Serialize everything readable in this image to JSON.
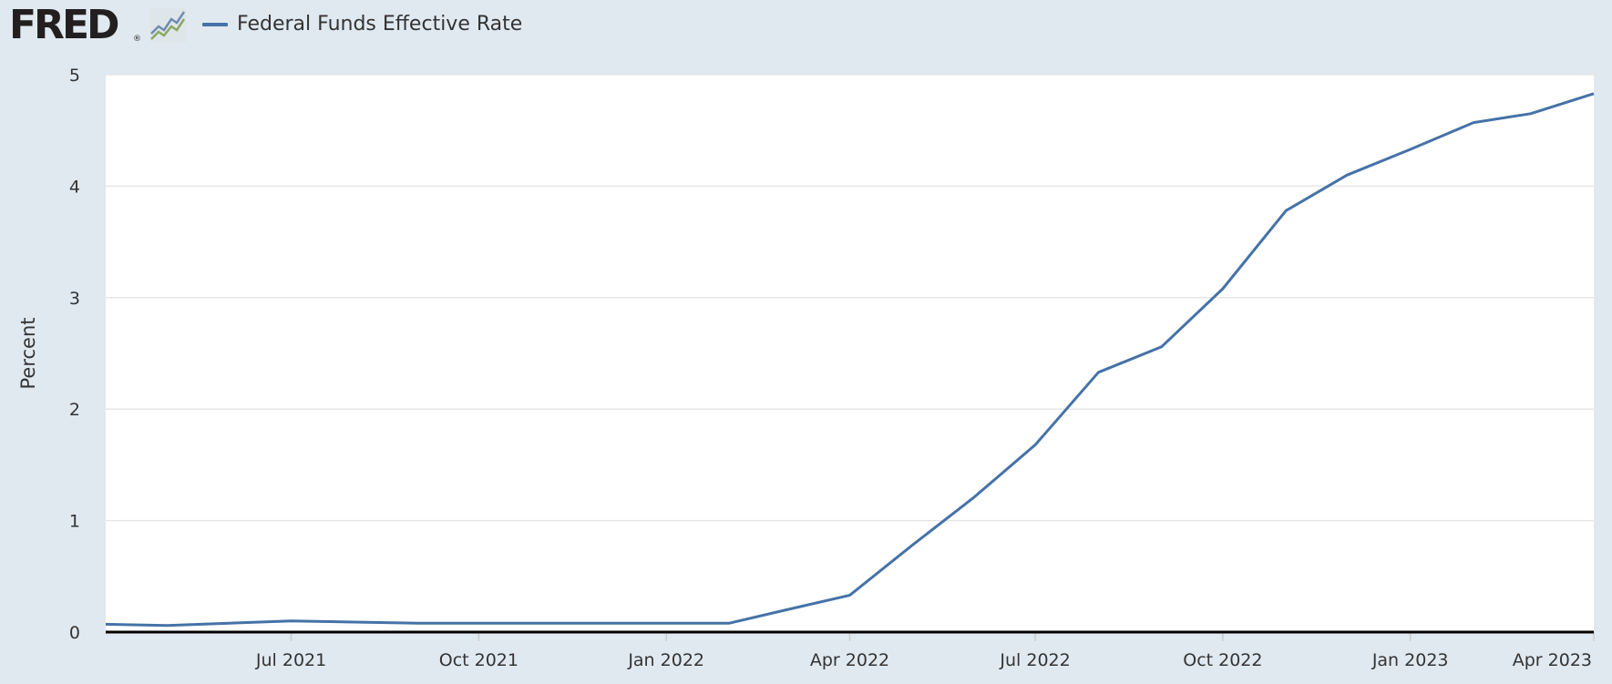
{
  "header": {
    "logo_text": "FRED",
    "logo_mark": "®",
    "logo_icon": "line-graph-icon",
    "legend_label": "Federal Funds Effective Rate",
    "series_color": "#4572a7"
  },
  "chart_data": {
    "type": "line",
    "title": "",
    "xlabel": "",
    "ylabel": "Percent",
    "ylim": [
      0,
      5
    ],
    "yticks": [
      0,
      1,
      2,
      3,
      4,
      5
    ],
    "xlim": [
      "2021-04-01",
      "2023-04-01"
    ],
    "xticks": [
      {
        "date": "2021-07-01",
        "label": "Jul 2021"
      },
      {
        "date": "2021-10-01",
        "label": "Oct 2021"
      },
      {
        "date": "2022-01-01",
        "label": "Jan 2022"
      },
      {
        "date": "2022-04-01",
        "label": "Apr 2022"
      },
      {
        "date": "2022-07-01",
        "label": "Jul 2022"
      },
      {
        "date": "2022-10-01",
        "label": "Oct 2022"
      },
      {
        "date": "2023-01-01",
        "label": "Jan 2023"
      },
      {
        "date": "2023-04-01",
        "label": "Apr 2023"
      }
    ],
    "grid": true,
    "legend_placement": "top-left",
    "series": [
      {
        "name": "Federal Funds Effective Rate",
        "color": "#4572a7",
        "points": [
          {
            "x": "2021-04-01",
            "y": 0.07
          },
          {
            "x": "2021-05-01",
            "y": 0.06
          },
          {
            "x": "2021-07-01",
            "y": 0.1
          },
          {
            "x": "2021-09-01",
            "y": 0.08
          },
          {
            "x": "2021-12-01",
            "y": 0.08
          },
          {
            "x": "2022-02-01",
            "y": 0.08
          },
          {
            "x": "2022-03-01",
            "y": 0.2
          },
          {
            "x": "2022-04-01",
            "y": 0.33
          },
          {
            "x": "2022-05-01",
            "y": 0.77
          },
          {
            "x": "2022-06-01",
            "y": 1.21
          },
          {
            "x": "2022-07-01",
            "y": 1.68
          },
          {
            "x": "2022-08-01",
            "y": 2.33
          },
          {
            "x": "2022-09-01",
            "y": 2.56
          },
          {
            "x": "2022-10-01",
            "y": 3.08
          },
          {
            "x": "2022-11-01",
            "y": 3.78
          },
          {
            "x": "2022-12-01",
            "y": 4.1
          },
          {
            "x": "2023-01-01",
            "y": 4.33
          },
          {
            "x": "2023-02-01",
            "y": 4.57
          },
          {
            "x": "2023-03-01",
            "y": 4.65
          },
          {
            "x": "2023-04-01",
            "y": 4.83
          }
        ]
      }
    ]
  }
}
